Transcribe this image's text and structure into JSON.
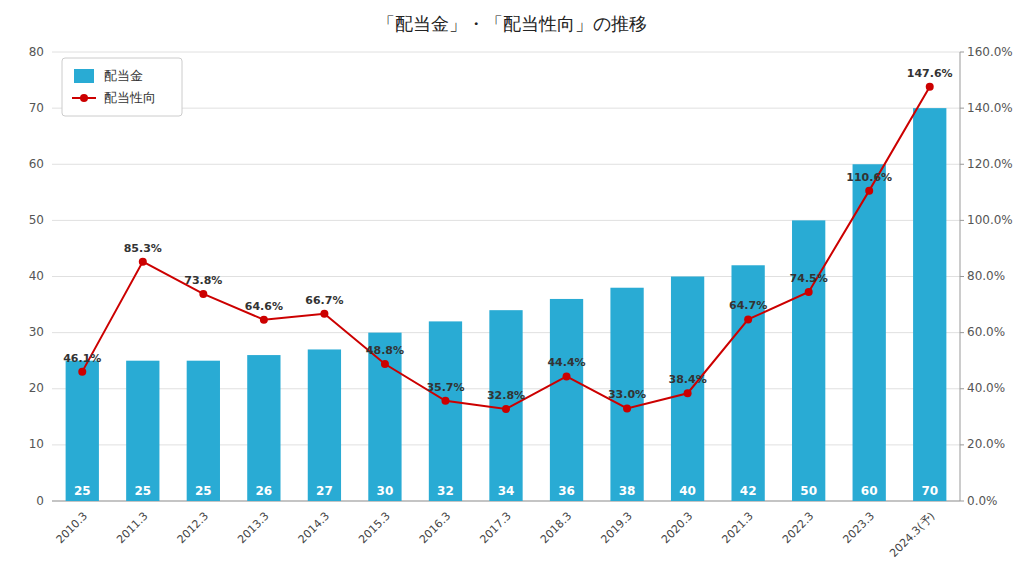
{
  "chart_data": {
    "type": "bar",
    "title": "「配当金」・「配当性向」の推移",
    "categories": [
      "2010.3",
      "2011.3",
      "2012.3",
      "2013.3",
      "2014.3",
      "2015.3",
      "2016.3",
      "2017.3",
      "2018.3",
      "2019.3",
      "2020.3",
      "2021.3",
      "2022.3",
      "2023.3",
      "2024.3(予)"
    ],
    "series": [
      {
        "name": "配当金",
        "type": "bar",
        "color": "#29ABD4",
        "values": [
          25,
          25,
          25,
          26,
          27,
          30,
          32,
          34,
          36,
          38,
          40,
          42,
          50,
          60,
          70
        ]
      },
      {
        "name": "配当性向",
        "type": "line",
        "axis": "y2",
        "color": "#CC0000",
        "marker": "circle",
        "line_style": "solid",
        "values": [
          46.1,
          85.3,
          73.8,
          64.6,
          66.7,
          48.8,
          35.7,
          32.8,
          44.4,
          33.0,
          38.4,
          64.7,
          74.5,
          110.6,
          147.6
        ],
        "value_labels": [
          "46.1%",
          "85.3%",
          "73.8%",
          "64.6%",
          "66.7%",
          "48.8%",
          "35.7%",
          "32.8%",
          "44.4%",
          "33.0%",
          "38.4%",
          "64.7%",
          "74.5%",
          "110.6%",
          "147.6%"
        ]
      }
    ],
    "ylim": [
      0,
      80
    ],
    "yticks": [
      0,
      10,
      20,
      30,
      40,
      50,
      60,
      70,
      80
    ],
    "y2lim": [
      0,
      160
    ],
    "y2ticks": [
      {
        "value": 0,
        "label": "0.0%"
      },
      {
        "value": 20,
        "label": "20.0%"
      },
      {
        "value": 40,
        "label": "40.0%"
      },
      {
        "value": 60,
        "label": "60.0%"
      },
      {
        "value": 80,
        "label": "80.0%"
      },
      {
        "value": 100,
        "label": "100.0%"
      },
      {
        "value": 120,
        "label": "120.0%"
      },
      {
        "value": 140,
        "label": "140.0%"
      },
      {
        "value": 160,
        "label": "160.0%"
      }
    ],
    "grid": true,
    "legend": "upper left",
    "data_labels": true
  }
}
